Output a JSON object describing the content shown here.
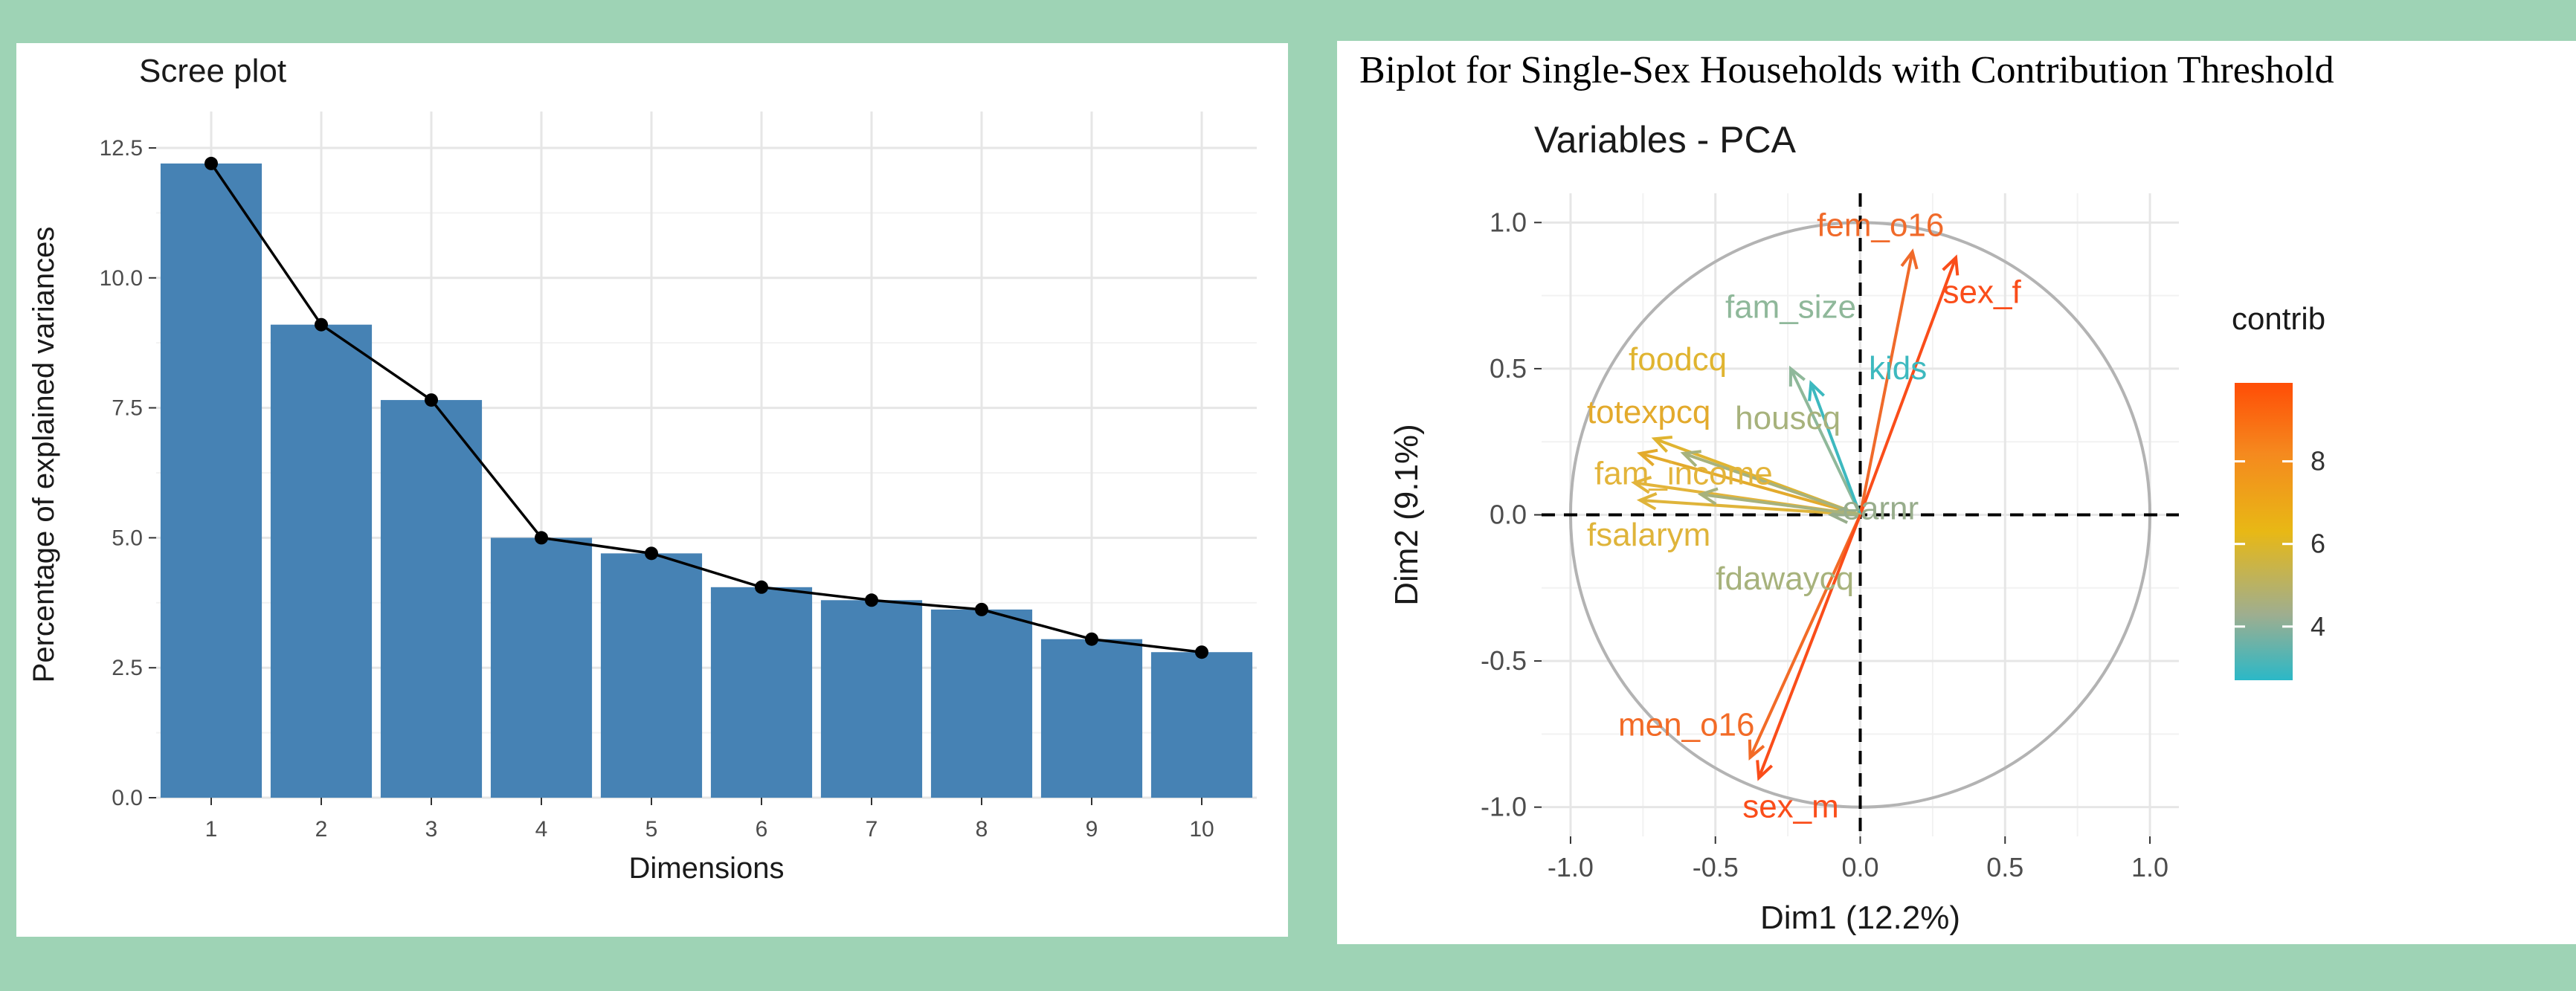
{
  "scree": {
    "chart_data": {
      "type": "bar",
      "title": "Scree plot",
      "xlabel": "Dimensions",
      "ylabel": "Percentage of explained variances",
      "categories": [
        "1",
        "2",
        "3",
        "4",
        "5",
        "6",
        "7",
        "8",
        "9",
        "10"
      ],
      "values": [
        12.2,
        9.1,
        7.65,
        5.0,
        4.7,
        4.05,
        3.8,
        3.62,
        3.05,
        2.8
      ],
      "ylim": [
        0,
        13.2
      ],
      "yticks": [
        "0.0",
        "2.5",
        "5.0",
        "7.5",
        "10.0",
        "12.5"
      ],
      "bar_color": "#4682b4",
      "line_color": "#000000",
      "grid": true
    }
  },
  "biplot": {
    "figure_title": "Biplot for Single-Sex Households with Contribution Threshold",
    "chart_data": {
      "type": "scatter",
      "title": "Variables - PCA",
      "xlabel": "Dim1 (12.2%)",
      "ylabel": "Dim2 (9.1%)",
      "xlim": [
        -1.1,
        1.1
      ],
      "ylim": [
        -1.1,
        1.1
      ],
      "xticks": [
        "-1.0",
        "-0.5",
        "0.0",
        "0.5",
        "1.0"
      ],
      "yticks": [
        "-1.0",
        "-0.5",
        "0.0",
        "0.5",
        "1.0"
      ],
      "grid": true,
      "circle_color": "#b3b3b3",
      "variables": [
        {
          "name": "fem_o16",
          "x": 0.18,
          "y": 0.9,
          "color": "#f06a2a",
          "label_x": 0.07,
          "label_y": 0.99
        },
        {
          "name": "sex_f",
          "x": 0.33,
          "y": 0.88,
          "color": "#fa4d1a",
          "label_x": 0.42,
          "label_y": 0.76
        },
        {
          "name": "fam_size",
          "x": -0.24,
          "y": 0.5,
          "color": "#8fb89a",
          "label_x": -0.24,
          "label_y": 0.71
        },
        {
          "name": "kids",
          "x": -0.17,
          "y": 0.45,
          "color": "#3db9bf",
          "label_x": 0.13,
          "label_y": 0.5
        },
        {
          "name": "foodcq",
          "x": -0.71,
          "y": 0.26,
          "color": "#e0b430",
          "label_x": -0.63,
          "label_y": 0.53
        },
        {
          "name": "totexpcq",
          "x": -0.76,
          "y": 0.21,
          "color": "#e3aa2c",
          "label_x": -0.73,
          "label_y": 0.35
        },
        {
          "name": "houscq",
          "x": -0.61,
          "y": 0.21,
          "color": "#a7b27c",
          "label_x": -0.25,
          "label_y": 0.33
        },
        {
          "name": "fam_income",
          "x": -0.78,
          "y": 0.11,
          "color": "#e3b43a",
          "label_x": -0.61,
          "label_y": 0.14
        },
        {
          "name": "fsalarym",
          "x": -0.76,
          "y": 0.05,
          "color": "#dfb43a",
          "label_x": -0.73,
          "label_y": -0.07
        },
        {
          "name": "earnr",
          "x": -0.1,
          "y": 0.0,
          "color": "#98ad8c",
          "label_x": 0.07,
          "label_y": 0.02
        },
        {
          "name": "fdawaycq",
          "x": -0.55,
          "y": 0.07,
          "color": "#a7b27c",
          "label_x": -0.26,
          "label_y": -0.22
        },
        {
          "name": "men_o16",
          "x": -0.38,
          "y": -0.83,
          "color": "#f26b27",
          "label_x": -0.6,
          "label_y": -0.72
        },
        {
          "name": "sex_m",
          "x": -0.35,
          "y": -0.9,
          "color": "#fa4d1a",
          "label_x": -0.24,
          "label_y": -1.0
        }
      ],
      "legend": {
        "title": "contrib",
        "placement": "right",
        "ticks": [
          "4",
          "6",
          "8"
        ],
        "tick_values": [
          4,
          6,
          8
        ],
        "range": [
          2.7,
          9.9
        ],
        "gradient_stops": [
          {
            "value": 2.7,
            "color": "#2bb8c7"
          },
          {
            "value": 4.3,
            "color": "#9fae8f"
          },
          {
            "value": 6.3,
            "color": "#e8b815"
          },
          {
            "value": 8.2,
            "color": "#f5891e"
          },
          {
            "value": 9.9,
            "color": "#ff4d06"
          }
        ]
      }
    }
  }
}
